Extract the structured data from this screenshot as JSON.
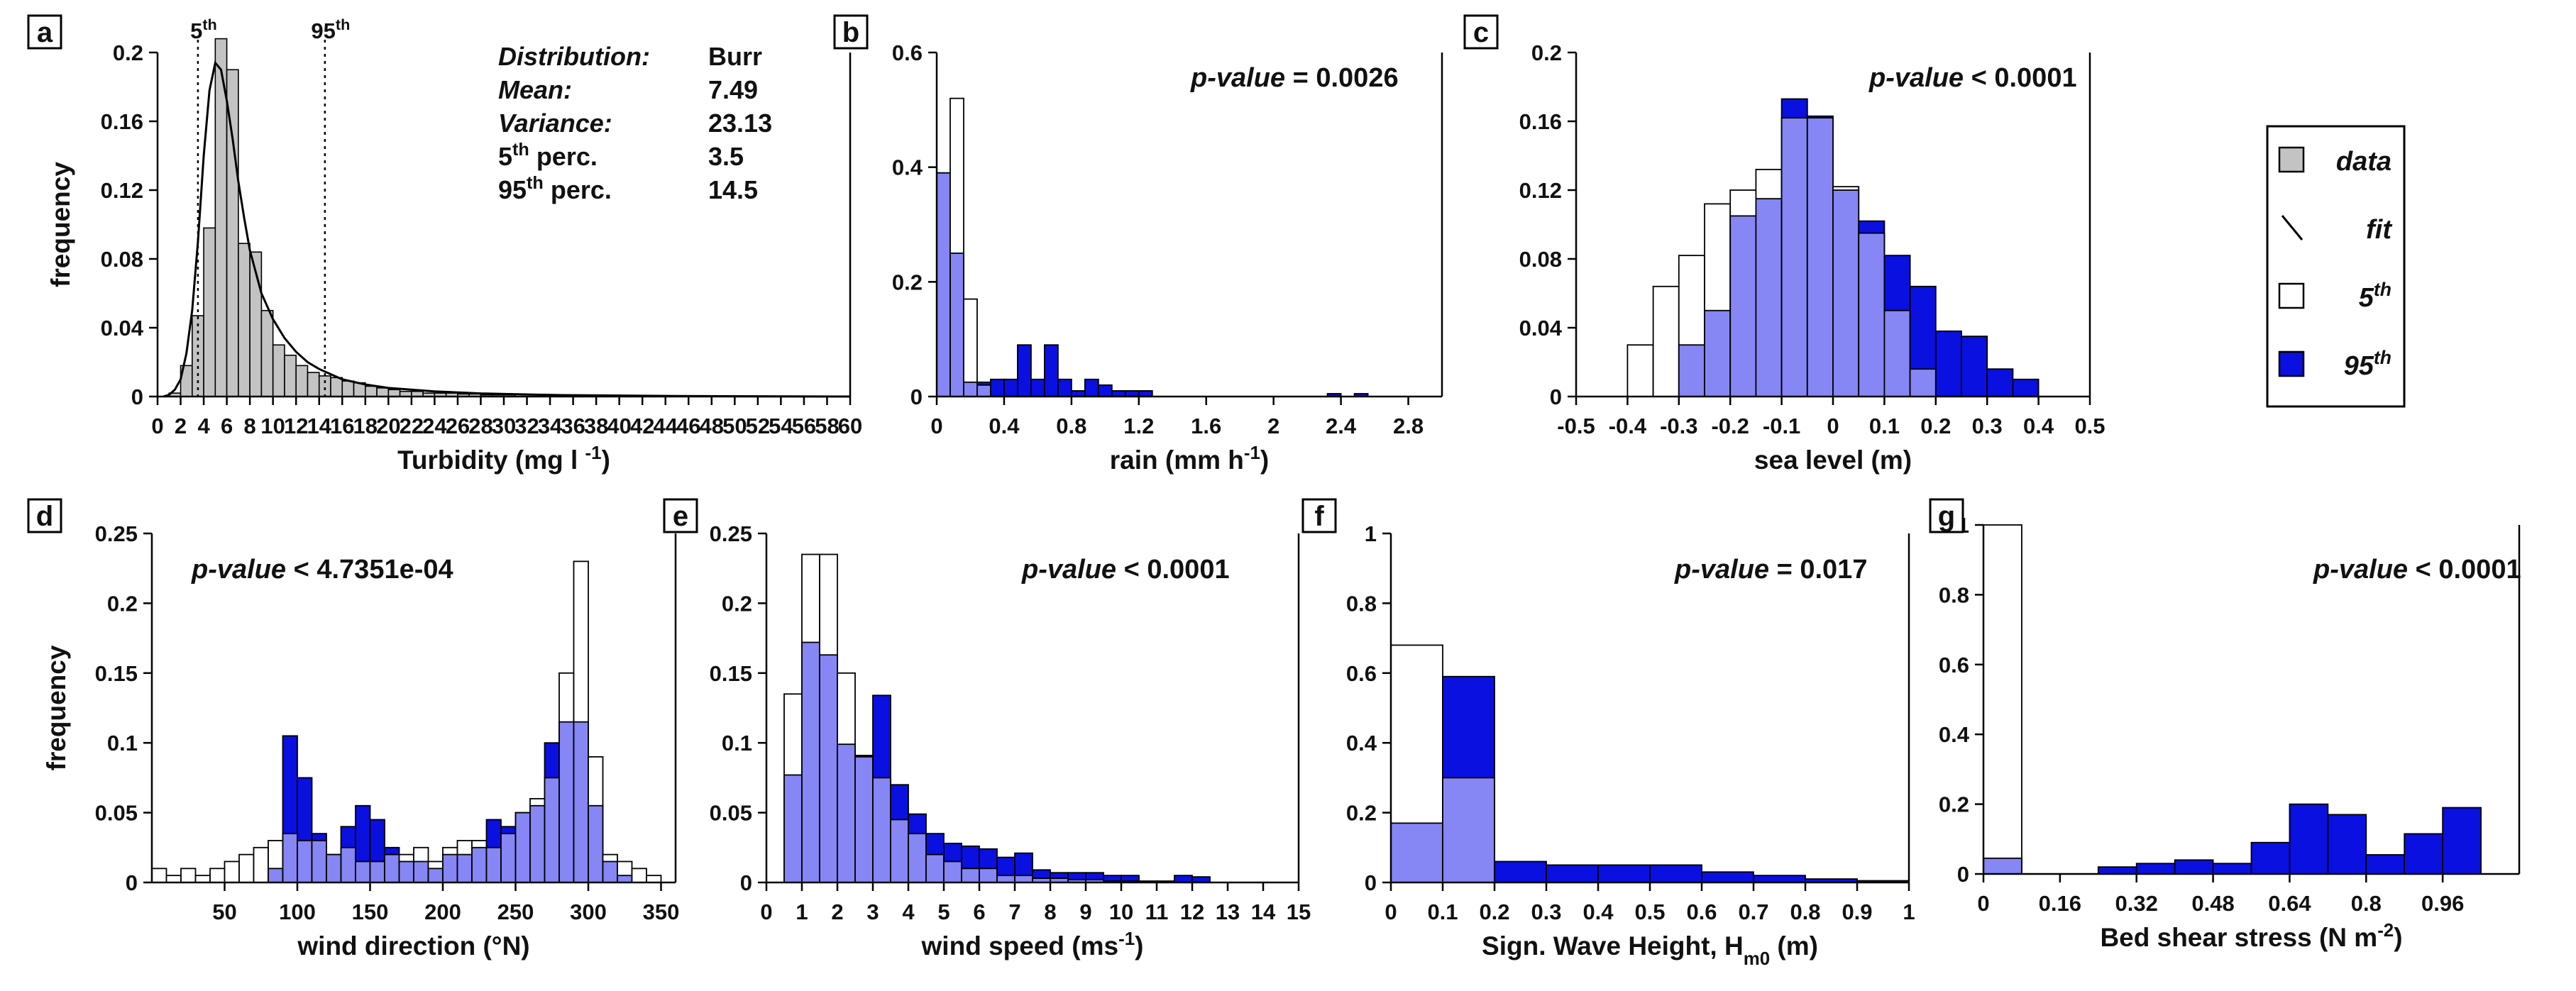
{
  "colors": {
    "data": "#c3c3c3",
    "perc5": "#ffffff",
    "perc95": "#0a10e0",
    "overlap": "#8686f4",
    "stroke": "#000000",
    "fit": "#000000"
  },
  "legend": {
    "items": [
      {
        "key": "data",
        "label": "data"
      },
      {
        "key": "fit",
        "label": "fit"
      },
      {
        "key": "perc5",
        "label": "5th"
      },
      {
        "key": "perc95",
        "label": "95th"
      }
    ]
  },
  "chart_data": [
    {
      "id": "a",
      "letter": "a",
      "type": "bar",
      "title": "",
      "xlabel": "Turbidity (mg l -1)",
      "ylabel": "frequency",
      "xlim": [
        0,
        60
      ],
      "ylim": [
        0,
        0.2
      ],
      "xticks": [
        0,
        2,
        4,
        6,
        8,
        10,
        12,
        14,
        16,
        18,
        20,
        22,
        24,
        26,
        28,
        30,
        32,
        34,
        36,
        38,
        40,
        42,
        44,
        46,
        48,
        50,
        52,
        54,
        56,
        58,
        60
      ],
      "yticks": [
        0,
        0.04,
        0.08,
        0.12,
        0.16,
        0.2
      ],
      "ytick_labels": [
        "0",
        "0.04",
        "0.08",
        "0.12",
        "0.16",
        "0.2"
      ],
      "bin_start": 1.0,
      "bin_width": 1.0,
      "series": [
        {
          "name": "data",
          "values": [
            0.002,
            0.018,
            0.047,
            0.098,
            0.208,
            0.19,
            0.089,
            0.084,
            0.05,
            0.03,
            0.024,
            0.018,
            0.014,
            0.012,
            0.011,
            0.009,
            0.008,
            0.006,
            0.005,
            0.004,
            0.003,
            0.003,
            0.002,
            0.002,
            0.002,
            0.0015,
            0.0015,
            0.001,
            0.001,
            0.001
          ]
        }
      ],
      "fit_curve": {
        "x": [
          0.5,
          1,
          1.5,
          2,
          2.5,
          3,
          3.5,
          4,
          4.5,
          5,
          5.5,
          6,
          6.5,
          7,
          7.5,
          8,
          9,
          10,
          11,
          12,
          13,
          14,
          15,
          16,
          18,
          20,
          24,
          28,
          35,
          45,
          60
        ],
        "y": [
          0,
          0.001,
          0.004,
          0.01,
          0.025,
          0.05,
          0.09,
          0.14,
          0.178,
          0.194,
          0.19,
          0.172,
          0.15,
          0.125,
          0.104,
          0.085,
          0.06,
          0.045,
          0.034,
          0.026,
          0.02,
          0.016,
          0.013,
          0.01,
          0.007,
          0.005,
          0.003,
          0.0018,
          0.0008,
          0.0003,
          0
        ]
      },
      "vlines": [
        {
          "x": 3.5,
          "label": "5th"
        },
        {
          "x": 14.5,
          "label": "95th"
        }
      ],
      "stats": [
        {
          "label": "Distribution:",
          "value": "Burr"
        },
        {
          "label": "Mean:",
          "value": "7.49"
        },
        {
          "label": "Variance:",
          "value": "23.13"
        },
        {
          "label": "5th perc.",
          "value": "3.5"
        },
        {
          "label": "95th perc.",
          "value": "14.5"
        }
      ]
    },
    {
      "id": "b",
      "letter": "b",
      "type": "bar",
      "title": "",
      "xlabel": "rain (mm h-1)",
      "ylabel": "",
      "xlim": [
        0,
        3.0
      ],
      "ylim": [
        0,
        0.6
      ],
      "xticks": [
        0,
        0.4,
        0.8,
        1.2,
        1.6,
        2,
        2.4,
        2.8
      ],
      "xtick_labels": [
        "0",
        "0.4",
        "0.8",
        "1.2",
        "1.6",
        "2",
        "2.4",
        "2.8"
      ],
      "yticks": [
        0,
        0.2,
        0.4,
        0.6
      ],
      "ytick_labels": [
        "0",
        "0.2",
        "0.4",
        "0.6"
      ],
      "bin_start": 0,
      "bin_width": 0.08,
      "pvalue": "= 0.0026",
      "series": [
        {
          "name": "5th",
          "values": [
            0.39,
            0.52,
            0.17,
            0.02,
            0,
            0,
            0,
            0,
            0,
            0,
            0,
            0,
            0,
            0,
            0,
            0,
            0,
            0,
            0,
            0,
            0,
            0,
            0,
            0,
            0,
            0,
            0,
            0,
            0,
            0,
            0,
            0,
            0
          ]
        },
        {
          "name": "95th",
          "values": [
            0.39,
            0.25,
            0.025,
            0.025,
            0.03,
            0.03,
            0.09,
            0.03,
            0.09,
            0.03,
            0.01,
            0.03,
            0.02,
            0.01,
            0.01,
            0.01,
            0,
            0,
            0,
            0,
            0,
            0,
            0,
            0,
            0,
            0,
            0,
            0,
            0,
            0.005,
            0,
            0.005,
            0
          ]
        }
      ],
      "overlap_hint": [
        0.31,
        0.25,
        0.02,
        0.02,
        0,
        0,
        0,
        0,
        0,
        0,
        0,
        0,
        0,
        0,
        0,
        0,
        0,
        0,
        0,
        0,
        0,
        0,
        0,
        0,
        0,
        0,
        0,
        0,
        0,
        0,
        0,
        0,
        0
      ]
    },
    {
      "id": "c",
      "letter": "c",
      "type": "bar",
      "title": "",
      "xlabel": "sea level (m)",
      "ylabel": "",
      "xlim": [
        -0.5,
        0.5
      ],
      "ylim": [
        0,
        0.2
      ],
      "xticks": [
        -0.5,
        -0.4,
        -0.3,
        -0.2,
        -0.1,
        0,
        0.1,
        0.2,
        0.3,
        0.4,
        0.5
      ],
      "xtick_labels": [
        "-0.5",
        "-0.4",
        "-0.3",
        "-0.2",
        "-0.1",
        "0",
        "0.1",
        "0.2",
        "0.3",
        "0.4",
        "0.5"
      ],
      "yticks": [
        0,
        0.04,
        0.08,
        0.12,
        0.16,
        0.2
      ],
      "ytick_labels": [
        "0",
        "0.04",
        "0.08",
        "0.12",
        "0.16",
        "0.2"
      ],
      "bin_start": -0.4,
      "bin_width": 0.05,
      "pvalue": "< 0.0001",
      "series": [
        {
          "name": "5th",
          "values": [
            0.03,
            0.064,
            0.082,
            0.112,
            0.12,
            0.132,
            0.162,
            0.162,
            0.122,
            0.095,
            0.05,
            0.016,
            0,
            0,
            0,
            0
          ]
        },
        {
          "name": "95th",
          "values": [
            0,
            0,
            0.03,
            0.05,
            0.105,
            0.115,
            0.173,
            0.163,
            0.12,
            0.102,
            0.082,
            0.064,
            0.038,
            0.035,
            0.016,
            0.01
          ]
        }
      ]
    },
    {
      "id": "d",
      "letter": "d",
      "type": "bar",
      "title": "",
      "xlabel": "wind direction (°N)",
      "ylabel": "frequency",
      "xlim": [
        0,
        360
      ],
      "ylim": [
        0,
        0.25
      ],
      "xticks": [
        50,
        100,
        150,
        200,
        250,
        300,
        350
      ],
      "xtick_labels": [
        "50",
        "100",
        "150",
        "200",
        "250",
        "300",
        "350"
      ],
      "yticks": [
        0,
        0.05,
        0.1,
        0.15,
        0.2,
        0.25
      ],
      "ytick_labels": [
        "0",
        "0.05",
        "0.1",
        "0.15",
        "0.2",
        "0.25"
      ],
      "bin_start": 0,
      "bin_width": 10,
      "pvalue": "< 4.7351e-04",
      "series": [
        {
          "name": "5th",
          "values": [
            0.01,
            0.005,
            0.01,
            0.005,
            0.01,
            0.015,
            0.02,
            0.025,
            0.03,
            0.035,
            0.03,
            0.03,
            0.02,
            0.025,
            0.015,
            0.015,
            0.02,
            0.02,
            0.025,
            0.015,
            0.025,
            0.03,
            0.03,
            0.025,
            0.035,
            0.05,
            0.06,
            0.075,
            0.15,
            0.23,
            0.09,
            0.02,
            0.015,
            0.01,
            0.005,
            0
          ]
        },
        {
          "name": "95th",
          "values": [
            0,
            0,
            0,
            0,
            0,
            0,
            0,
            0,
            0.01,
            0.105,
            0.075,
            0.035,
            0.02,
            0.04,
            0.055,
            0.045,
            0.025,
            0.015,
            0.015,
            0.01,
            0.02,
            0.02,
            0.025,
            0.045,
            0.04,
            0.05,
            0.055,
            0.1,
            0.115,
            0.115,
            0.055,
            0.015,
            0.005,
            0,
            0,
            0
          ]
        }
      ]
    },
    {
      "id": "e",
      "letter": "e",
      "type": "bar",
      "title": "",
      "xlabel": "wind speed (ms-1)",
      "ylabel": "",
      "xlim": [
        0,
        15
      ],
      "ylim": [
        0,
        0.25
      ],
      "xticks": [
        0,
        1,
        2,
        3,
        4,
        5,
        6,
        7,
        8,
        9,
        10,
        11,
        12,
        13,
        14,
        15
      ],
      "yticks": [
        0,
        0.05,
        0.1,
        0.15,
        0.2,
        0.25
      ],
      "ytick_labels": [
        "0",
        "0.05",
        "0.1",
        "0.15",
        "0.2",
        "0.25"
      ],
      "bin_start": 0.5,
      "bin_width": 0.5,
      "pvalue": "< 0.0001",
      "series": [
        {
          "name": "5th",
          "values": [
            0.135,
            0.235,
            0.235,
            0.15,
            0.09,
            0.075,
            0.045,
            0.035,
            0.02,
            0.015,
            0.01,
            0.01,
            0.005,
            0.005,
            0.003,
            0.003,
            0.002,
            0.002,
            0.001,
            0.001,
            0.001,
            0.001,
            0,
            0
          ]
        },
        {
          "name": "95th",
          "values": [
            0.077,
            0.172,
            0.163,
            0.099,
            0.091,
            0.134,
            0.07,
            0.049,
            0.035,
            0.028,
            0.026,
            0.024,
            0.018,
            0.021,
            0.009,
            0.007,
            0.007,
            0.007,
            0.005,
            0.005,
            0,
            0,
            0.005,
            0.004
          ]
        }
      ]
    },
    {
      "id": "f",
      "letter": "f",
      "type": "bar",
      "title": "",
      "xlabel": "Sign. Wave Height, Hm0 (m)",
      "ylabel": "",
      "xlim": [
        0,
        1
      ],
      "ylim": [
        0,
        1
      ],
      "xticks": [
        0,
        0.1,
        0.2,
        0.3,
        0.4,
        0.5,
        0.6,
        0.7,
        0.8,
        0.9,
        1
      ],
      "xtick_labels": [
        "0",
        "0.1",
        "0.2",
        "0.3",
        "0.4",
        "0.5",
        "0.6",
        "0.7",
        "0.8",
        "0.9",
        "1"
      ],
      "yticks": [
        0,
        0.2,
        0.4,
        0.6,
        0.8,
        1
      ],
      "ytick_labels": [
        "0",
        "0.2",
        "0.4",
        "0.6",
        "0.8",
        "1"
      ],
      "bin_start": 0,
      "bin_width": 0.1,
      "pvalue": "= 0.017",
      "series": [
        {
          "name": "5th",
          "values": [
            0.68,
            0.3,
            0,
            0,
            0,
            0,
            0,
            0,
            0,
            0
          ]
        },
        {
          "name": "95th",
          "values": [
            0.17,
            0.59,
            0.06,
            0.05,
            0.05,
            0.05,
            0.03,
            0.02,
            0.01,
            0.005
          ]
        }
      ]
    },
    {
      "id": "g",
      "letter": "g",
      "type": "bar",
      "title": "",
      "xlabel": "Bed shear stress (N m-2)",
      "ylabel": "",
      "xlim": [
        0,
        1.12
      ],
      "ylim": [
        0,
        1
      ],
      "xticks": [
        0,
        0.16,
        0.32,
        0.48,
        0.64,
        0.8,
        0.96
      ],
      "xtick_labels": [
        "0",
        "0.16",
        "0.32",
        "0.48",
        "0.64",
        "0.8",
        "0.96"
      ],
      "yticks": [
        0,
        0.2,
        0.4,
        0.6,
        0.8,
        1
      ],
      "ytick_labels": [
        "0",
        "0.2",
        "0.4",
        "0.6",
        "0.8",
        "1"
      ],
      "bin_start": 0,
      "bin_width": 0.08,
      "pvalue": "< 0.0001",
      "series": [
        {
          "name": "5th",
          "values": [
            1.0,
            0,
            0,
            0,
            0,
            0,
            0,
            0,
            0,
            0,
            0,
            0,
            0
          ]
        },
        {
          "name": "95th",
          "values": [
            0.045,
            0,
            0,
            0.02,
            0.03,
            0.04,
            0.03,
            0.09,
            0.2,
            0.17,
            0.055,
            0.115,
            0.19
          ]
        }
      ]
    }
  ]
}
